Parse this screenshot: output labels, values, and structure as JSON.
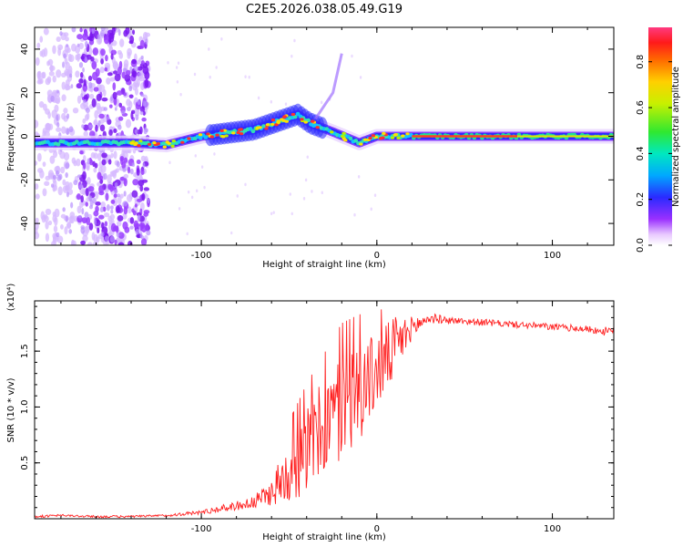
{
  "figure": {
    "title": "C2E5.2026.038.05.49.G19"
  },
  "chart_data": [
    {
      "type": "heatmap",
      "xlabel": "Height of straight line (km)",
      "ylabel": "Frequency (Hz)",
      "xlim": [
        -195,
        135
      ],
      "ylim": [
        -50,
        50
      ],
      "xticks": [
        -100,
        0,
        100
      ],
      "yticks": [
        40,
        20,
        0,
        -20,
        -40
      ],
      "colorbar": {
        "label": "Normalized spectral amplitude",
        "range": [
          0,
          0.95
        ],
        "ticks": [
          0.0,
          0.2,
          0.4,
          0.6,
          0.8
        ]
      },
      "features": [
        {
          "name": "main-trace",
          "description": "strong signal near 0 Hz",
          "path": [
            [
              -195,
              -3
            ],
            [
              -140,
              -3
            ],
            [
              -120,
              -4
            ],
            [
              -100,
              0
            ],
            [
              -70,
              3
            ],
            [
              -45,
              10
            ],
            [
              -38,
              6
            ],
            [
              -25,
              2
            ],
            [
              -10,
              -3
            ],
            [
              0,
              0
            ],
            [
              40,
              0
            ],
            [
              80,
              0
            ],
            [
              135,
              0
            ]
          ]
        },
        {
          "name": "noise-band",
          "description": "scattered low-amplitude returns",
          "x_range": [
            -195,
            -130
          ],
          "y_range": [
            -50,
            50
          ]
        },
        {
          "name": "ghost-track",
          "description": "faint diagonal segment",
          "path": [
            [
              -35,
              8
            ],
            [
              -25,
              20
            ],
            [
              -20,
              38
            ]
          ]
        }
      ]
    },
    {
      "type": "line",
      "xlabel": "Height of straight line (km)",
      "ylabel": "SNR (10 * v/v)",
      "yscale_label": "(x10⁴)",
      "xlim": [
        -195,
        135
      ],
      "ylim": [
        0,
        1.95
      ],
      "xticks": [
        -100,
        0,
        100
      ],
      "yticks": [
        0.5,
        1.0,
        1.5
      ],
      "ytick_labels": [
        "0.5",
        "1.0",
        "1.5"
      ],
      "series": [
        {
          "name": "SNR",
          "color": "#ff2020",
          "x": [
            -195,
            -180,
            -160,
            -140,
            -120,
            -100,
            -90,
            -80,
            -70,
            -60,
            -50,
            -40,
            -30,
            -20,
            -10,
            0,
            10,
            20,
            30,
            40,
            50,
            60,
            70,
            80,
            90,
            100,
            110,
            120,
            130,
            135
          ],
          "y": [
            0.02,
            0.03,
            0.02,
            0.02,
            0.03,
            0.06,
            0.09,
            0.12,
            0.15,
            0.25,
            0.45,
            0.65,
            0.85,
            1.05,
            1.2,
            1.35,
            1.55,
            1.72,
            1.8,
            1.78,
            1.77,
            1.76,
            1.75,
            1.74,
            1.73,
            1.72,
            1.71,
            1.7,
            1.68,
            1.68
          ],
          "jitter": [
            0.01,
            0.01,
            0.01,
            0.01,
            0.01,
            0.02,
            0.03,
            0.04,
            0.06,
            0.12,
            0.3,
            0.4,
            0.45,
            0.5,
            0.45,
            0.35,
            0.3,
            0.1,
            0.05,
            0.03,
            0.03,
            0.03,
            0.03,
            0.03,
            0.03,
            0.03,
            0.03,
            0.03,
            0.04,
            0.04
          ]
        }
      ]
    }
  ]
}
